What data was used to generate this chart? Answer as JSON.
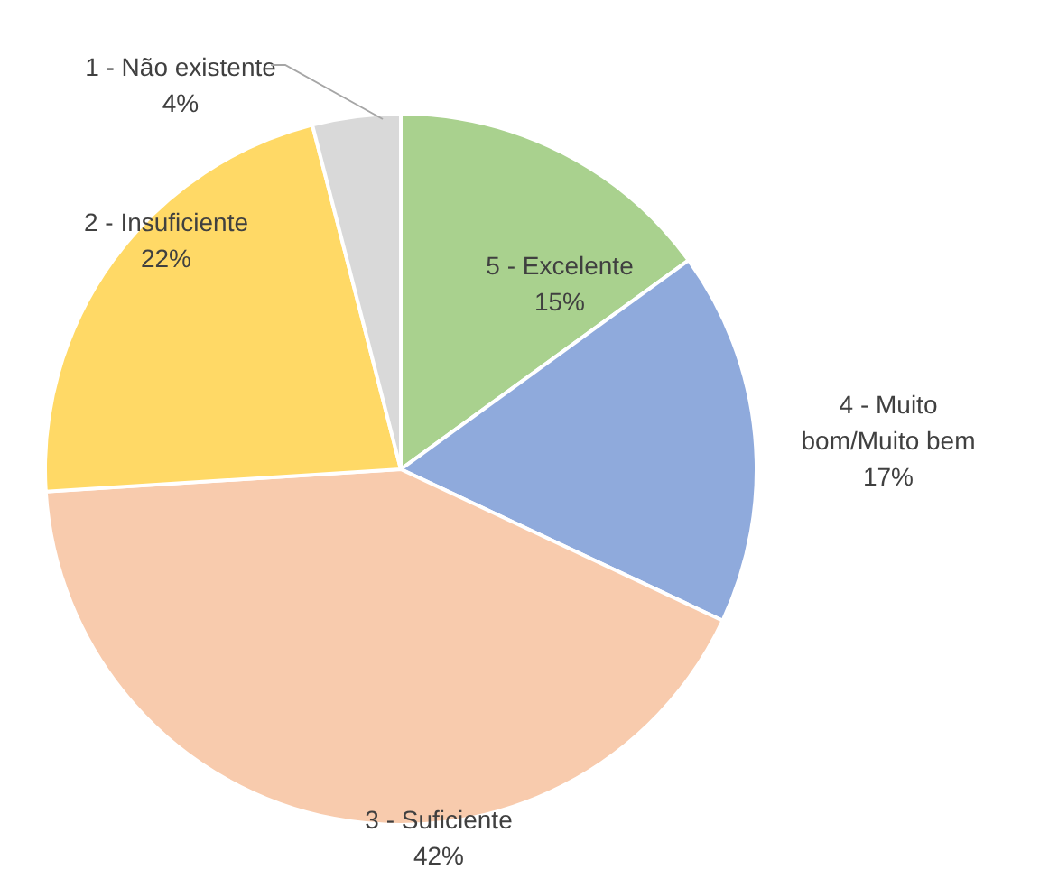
{
  "chart_data": {
    "type": "pie",
    "categories": [
      "5 - Excelente",
      "4 - Muito bom/Muito bem",
      "3 - Suficiente",
      "2 - Insuficiente",
      "1 - Não existente"
    ],
    "values": [
      15,
      17,
      42,
      22,
      4
    ],
    "colors": [
      "#a9d18e",
      "#8faadc",
      "#f8cbad",
      "#ffd966",
      "#d9d9d9"
    ],
    "value_labels": [
      "15%",
      "17%",
      "42%",
      "22%",
      "4%"
    ]
  }
}
